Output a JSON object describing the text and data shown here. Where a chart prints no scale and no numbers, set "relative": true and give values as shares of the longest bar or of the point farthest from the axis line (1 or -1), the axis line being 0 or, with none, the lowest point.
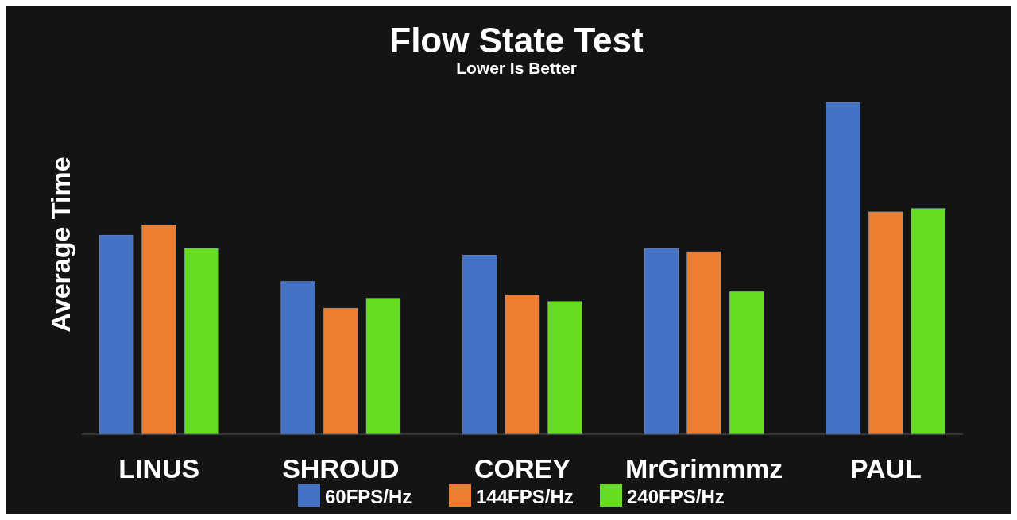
{
  "chart_data": {
    "type": "bar",
    "title": "Flow State Test",
    "subtitle": "Lower Is Better",
    "ylabel": "Average Time",
    "relative": true,
    "categories": [
      "LINUS",
      "SHROUD",
      "COREY",
      "MrGrimmmz",
      "PAUL"
    ],
    "series": [
      {
        "name": "60FPS/Hz",
        "color": "#4472c4",
        "values": [
          0.6,
          0.46,
          0.54,
          0.56,
          1
        ]
      },
      {
        "name": "144FPS/Hz",
        "color": "#ed7d31",
        "values": [
          0.63,
          0.38,
          0.42,
          0.55,
          0.67
        ]
      },
      {
        "name": "240FPS/Hz",
        "color": "#66dd22",
        "values": [
          0.56,
          0.41,
          0.4,
          0.43,
          0.68
        ]
      }
    ],
    "legend": "bottom",
    "grid": false
  }
}
